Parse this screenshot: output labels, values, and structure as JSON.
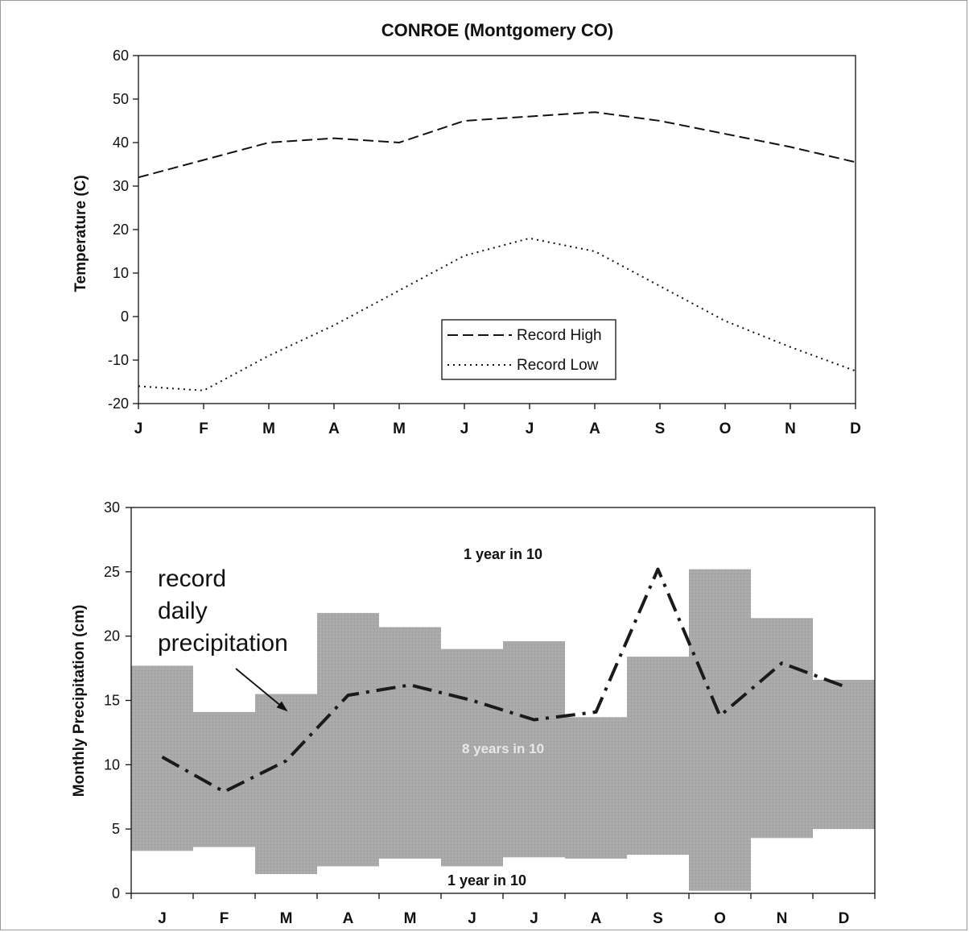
{
  "chart_data": [
    {
      "type": "line",
      "title": "CONROE (Montgomery CO)",
      "xlabel": "",
      "ylabel": "Temperature (C)",
      "ylim": [
        -20,
        60
      ],
      "yticks": [
        60,
        50,
        40,
        30,
        20,
        10,
        0,
        -10,
        -20
      ],
      "categories": [
        "J",
        "F",
        "M",
        "A",
        "M",
        "J",
        "J",
        "A",
        "S",
        "O",
        "N",
        "D"
      ],
      "series": [
        {
          "name": "Record High",
          "values": [
            32,
            36,
            40,
            41,
            40,
            45,
            46,
            47,
            45,
            42,
            39,
            35.5
          ],
          "style": "dashed"
        },
        {
          "name": "Record Low",
          "values": [
            -16,
            -17,
            -9,
            -2,
            6,
            14,
            18,
            15,
            7,
            -1,
            -7,
            -12.5
          ],
          "style": "dotted"
        }
      ],
      "legend": "bottom-center",
      "grid": false
    },
    {
      "type": "area",
      "title": "",
      "xlabel": "",
      "ylabel": "Monthly Precipitation (cm)",
      "ylim": [
        0,
        30
      ],
      "yticks": [
        30,
        25,
        20,
        15,
        10,
        5,
        0
      ],
      "categories": [
        "J",
        "F",
        "M",
        "A",
        "M",
        "J",
        "J",
        "A",
        "S",
        "O",
        "N",
        "D"
      ],
      "band": {
        "low": [
          3.3,
          3.6,
          1.5,
          2.1,
          2.7,
          2.1,
          2.8,
          2.7,
          3.0,
          0.2,
          4.3,
          5.0
        ],
        "high": [
          17.7,
          14.1,
          15.5,
          21.8,
          20.7,
          19.0,
          19.6,
          13.7,
          18.4,
          25.2,
          21.4,
          16.6
        ]
      },
      "series": [
        {
          "values": [
            10.6,
            7.9,
            10.3,
            15.4,
            16.2,
            15.0,
            13.5,
            14.1,
            25.2,
            13.8,
            17.9,
            16.1
          ],
          "style": "dash-dot"
        }
      ],
      "annotations": {
        "upper_band": "1 year in 10",
        "middle_band": "8 years in 10",
        "lower_band": "1 year in 10",
        "record_line": [
          "record",
          "daily",
          "precipitation"
        ]
      },
      "colors": {
        "band": "#a9a9a9",
        "line": "#1a1a1a"
      },
      "grid": false
    }
  ]
}
